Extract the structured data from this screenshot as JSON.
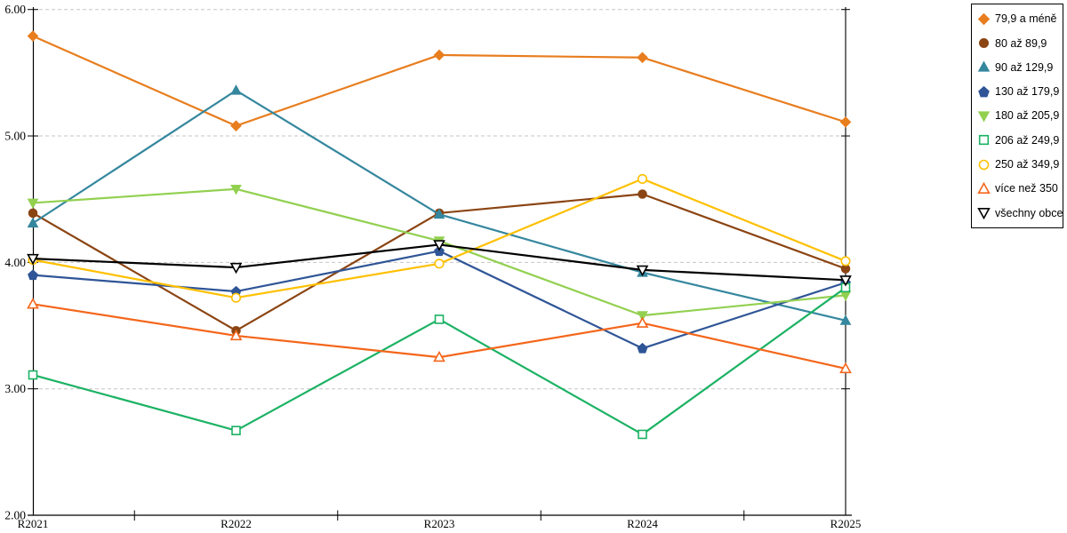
{
  "chart_data": {
    "type": "line",
    "title": "",
    "xlabel": "",
    "ylabel": "",
    "x": [
      "R2021",
      "R2022",
      "R2023",
      "R2024",
      "R2025"
    ],
    "ylim": [
      2.0,
      6.0
    ],
    "y_tick_labels": [
      "6.00",
      "5.00",
      "4.00",
      "3.00",
      "2.00"
    ],
    "grid": "horizontal dashed",
    "legend_position": "right-outside",
    "series": [
      {
        "name": "79,9 a méně",
        "color": "#E87D1E",
        "marker": "diamond",
        "fill": "solid",
        "values": [
          5.79,
          5.08,
          5.64,
          5.62,
          5.11
        ]
      },
      {
        "name": "80 až 89,9",
        "color": "#8B4513",
        "marker": "circle",
        "fill": "solid",
        "values": [
          4.39,
          3.46,
          4.39,
          4.54,
          3.95
        ]
      },
      {
        "name": "90 až 129,9",
        "color": "#35879E",
        "marker": "triangle-up",
        "fill": "solid",
        "values": [
          4.31,
          5.36,
          4.38,
          3.92,
          3.54
        ]
      },
      {
        "name": "130 až 179,9",
        "color": "#2F5597",
        "marker": "pentagon",
        "fill": "solid",
        "values": [
          3.9,
          3.77,
          4.09,
          3.32,
          3.84
        ]
      },
      {
        "name": "180 až 205,9",
        "color": "#92D050",
        "marker": "triangle-down",
        "fill": "solid",
        "values": [
          4.47,
          4.58,
          4.17,
          3.58,
          3.74
        ]
      },
      {
        "name": "206 až 249,9",
        "color": "#1CB264",
        "marker": "square",
        "fill": "hollow",
        "values": [
          3.11,
          2.67,
          3.55,
          2.64,
          3.8
        ]
      },
      {
        "name": "250 až 349,9",
        "color": "#FFC000",
        "marker": "circle",
        "fill": "hollow",
        "values": [
          4.02,
          3.72,
          3.99,
          4.66,
          4.01
        ]
      },
      {
        "name": "více než 350",
        "color": "#F4661B",
        "marker": "triangle-up",
        "fill": "hollow",
        "values": [
          3.67,
          3.42,
          3.25,
          3.52,
          3.16
        ]
      },
      {
        "name": "všechny obce",
        "color": "#000000",
        "marker": "triangle-down",
        "fill": "hollow",
        "values": [
          4.03,
          3.96,
          4.14,
          3.94,
          3.86
        ]
      }
    ]
  }
}
